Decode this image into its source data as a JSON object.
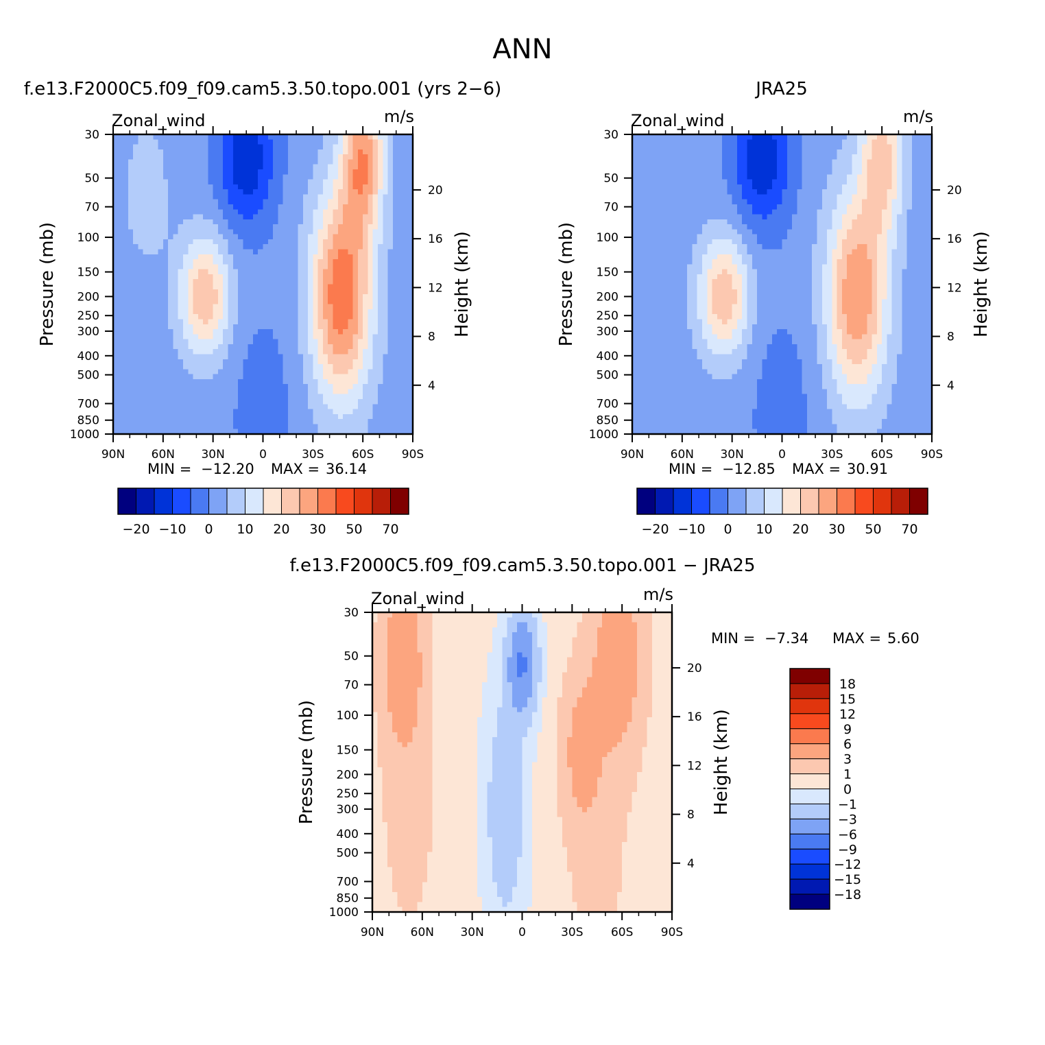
{
  "figure": {
    "title": "ANN"
  },
  "palettes": {
    "abs": [
      "#00007f",
      "#0019b2",
      "#0033d8",
      "#1a4cff",
      "#4a7af2",
      "#7ea3f5",
      "#b3ccfa",
      "#d9e8fd",
      "#fde6d6",
      "#fcc8b0",
      "#fca57f",
      "#fb7a4e",
      "#f84a1e",
      "#e0350d",
      "#b81e08",
      "#7f0000"
    ],
    "diff": [
      "#00007f",
      "#0019b2",
      "#0033d8",
      "#1a4cff",
      "#4a7af2",
      "#7ea3f5",
      "#b3ccfa",
      "#d9e8fd",
      "#fde6d6",
      "#fcc8b0",
      "#fca57f",
      "#fb7a4e",
      "#f84a1e",
      "#e0350d",
      "#b81e08",
      "#7f0000"
    ]
  },
  "chart_data": [
    {
      "type": "heatmap",
      "title": "f.e13.F2000C5.f09_f09.cam5.3.50.topo.001 (yrs 2−6)",
      "variable": "Zonal_wind",
      "units": "m/s",
      "xlabel": "",
      "ylabel": "Pressure (mb)",
      "y2label": "Height (km)",
      "x_ticks": [
        "90N",
        "60N",
        "30N",
        "0",
        "30S",
        "60S",
        "90S"
      ],
      "xlim": [
        90,
        -90
      ],
      "y_ticks": [
        30,
        50,
        70,
        100,
        150,
        200,
        250,
        300,
        400,
        500,
        700,
        850,
        1000
      ],
      "ylim": [
        1000,
        30
      ],
      "y_scale": "log",
      "y2_ticks": [
        4,
        8,
        12,
        16,
        20
      ],
      "min_label": "MIN =",
      "min_value": "−12.20",
      "max_label": "MAX =",
      "max_value": "36.14",
      "colorbar": {
        "orientation": "horizontal",
        "levels": [
          -25,
          -20,
          -15,
          -10,
          -5,
          0,
          5,
          10,
          15,
          20,
          25,
          30,
          40,
          50,
          60,
          70
        ],
        "tick_labels": [
          "−20",
          "−10",
          "0",
          "10",
          "20",
          "30",
          "50",
          "70"
        ]
      },
      "field": {
        "base": 2,
        "jets": [
          {
            "lat": -47,
            "p": 200,
            "amp": 32,
            "wlat": 13,
            "wlogp": 0.85
          },
          {
            "lat": -60,
            "p": 40,
            "amp": 26,
            "wlat": 9,
            "wlogp": 0.6
          },
          {
            "lat": 35,
            "p": 200,
            "amp": 22,
            "wlat": 11,
            "wlogp": 0.5
          },
          {
            "lat": 10,
            "p": 40,
            "amp": -16,
            "wlat": 12,
            "wlogp": 0.55
          },
          {
            "lat": 0,
            "p": 700,
            "amp": -4,
            "wlat": 15,
            "wlogp": 0.8
          },
          {
            "lat": 70,
            "p": 60,
            "amp": 6,
            "wlat": 10,
            "wlogp": 0.6
          }
        ]
      }
    },
    {
      "type": "heatmap",
      "title": "JRA25",
      "variable": "Zonal_wind",
      "units": "m/s",
      "xlabel": "",
      "ylabel": "Pressure (mb)",
      "y2label": "Height (km)",
      "x_ticks": [
        "90N",
        "60N",
        "30N",
        "0",
        "30S",
        "60S",
        "90S"
      ],
      "xlim": [
        90,
        -90
      ],
      "y_ticks": [
        30,
        50,
        70,
        100,
        150,
        200,
        250,
        300,
        400,
        500,
        700,
        850,
        1000
      ],
      "ylim": [
        1000,
        30
      ],
      "y_scale": "log",
      "y2_ticks": [
        4,
        8,
        12,
        16,
        20
      ],
      "min_label": "MIN =",
      "min_value": "−12.85",
      "max_label": "MAX =",
      "max_value": "30.91",
      "colorbar": {
        "orientation": "horizontal",
        "levels": [
          -25,
          -20,
          -15,
          -10,
          -5,
          0,
          5,
          10,
          15,
          20,
          25,
          30,
          40,
          50,
          60,
          70
        ],
        "tick_labels": [
          "−20",
          "−10",
          "0",
          "10",
          "20",
          "30",
          "50",
          "70"
        ]
      },
      "field": {
        "base": 2,
        "jets": [
          {
            "lat": -45,
            "p": 200,
            "amp": 28,
            "wlat": 13,
            "wlogp": 0.85
          },
          {
            "lat": -60,
            "p": 40,
            "amp": 20,
            "wlat": 9,
            "wlogp": 0.6
          },
          {
            "lat": 35,
            "p": 200,
            "amp": 22,
            "wlat": 11,
            "wlogp": 0.5
          },
          {
            "lat": 12,
            "p": 40,
            "amp": -16,
            "wlat": 12,
            "wlogp": 0.55
          },
          {
            "lat": 0,
            "p": 700,
            "amp": -4,
            "wlat": 15,
            "wlogp": 0.8
          }
        ]
      }
    },
    {
      "type": "heatmap",
      "title": "f.e13.F2000C5.f09_f09.cam5.3.50.topo.001 − JRA25",
      "variable": "Zonal_wind",
      "units": "m/s",
      "xlabel": "",
      "ylabel": "Pressure (mb)",
      "y2label": "Height (km)",
      "x_ticks": [
        "90N",
        "60N",
        "30N",
        "0",
        "30S",
        "60S",
        "90S"
      ],
      "xlim": [
        90,
        -90
      ],
      "y_ticks": [
        30,
        50,
        70,
        100,
        150,
        200,
        250,
        300,
        400,
        500,
        700,
        850,
        1000
      ],
      "ylim": [
        1000,
        30
      ],
      "y_scale": "log",
      "y2_ticks": [
        4,
        8,
        12,
        16,
        20
      ],
      "min_label": "MIN =",
      "min_value": "−7.34",
      "max_label": "MAX =",
      "max_value": "5.60",
      "colorbar": {
        "orientation": "vertical",
        "levels": [
          -21,
          -18,
          -15,
          -12,
          -9,
          -6,
          -3,
          -1,
          0,
          1,
          3,
          6,
          9,
          12,
          15,
          18
        ],
        "tick_labels": [
          "18",
          "15",
          "12",
          "9",
          "6",
          "3",
          "1",
          "0",
          "−1",
          "−3",
          "−6",
          "−9",
          "−12",
          "−15",
          "−18"
        ]
      },
      "field": {
        "base": 0.2,
        "jets": [
          {
            "lat": 72,
            "p": 50,
            "amp": 4.5,
            "wlat": 9,
            "wlogp": 0.7
          },
          {
            "lat": 68,
            "p": 250,
            "amp": 1.6,
            "wlat": 12,
            "wlogp": 1.2
          },
          {
            "lat": -58,
            "p": 50,
            "amp": 4.5,
            "wlat": 11,
            "wlogp": 0.8
          },
          {
            "lat": -35,
            "p": 150,
            "amp": 3.2,
            "wlat": 8,
            "wlogp": 0.6
          },
          {
            "lat": -45,
            "p": 400,
            "amp": 1.4,
            "wlat": 14,
            "wlogp": 1.5
          },
          {
            "lat": 0,
            "p": 55,
            "amp": -6.5,
            "wlat": 6,
            "wlogp": 0.4
          },
          {
            "lat": 10,
            "p": 300,
            "amp": -2.6,
            "wlat": 8,
            "wlogp": 0.9
          }
        ]
      }
    }
  ]
}
